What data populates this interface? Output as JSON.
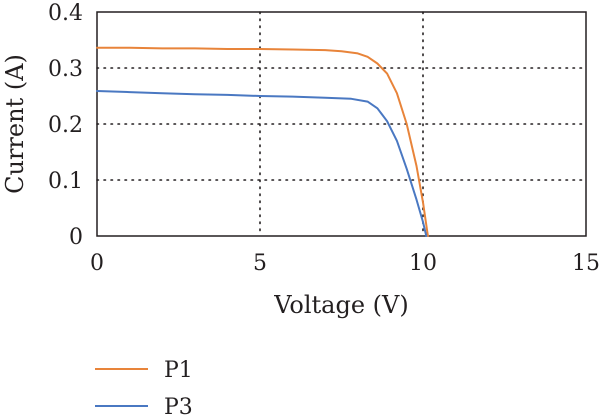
{
  "chart_data": {
    "type": "line",
    "xlabel": "Voltage (V)",
    "ylabel": "Current (A)",
    "xlim": [
      0,
      15
    ],
    "ylim": [
      0,
      0.4
    ],
    "x_ticks": [
      "0",
      "5",
      "10",
      "15"
    ],
    "y_ticks": [
      "0",
      "0.1",
      "0.2",
      "0.3",
      "0.4"
    ],
    "grid": "dotted",
    "legend_position": "bottom-left",
    "series": [
      {
        "name": "P1",
        "color": "#e8843a",
        "x": [
          0,
          1,
          2,
          3,
          4,
          5,
          6,
          7,
          7.5,
          8,
          8.3,
          8.6,
          8.9,
          9.2,
          9.5,
          9.8,
          10.0,
          10.15
        ],
        "y": [
          0.336,
          0.336,
          0.335,
          0.335,
          0.334,
          0.334,
          0.333,
          0.332,
          0.33,
          0.326,
          0.32,
          0.308,
          0.29,
          0.255,
          0.2,
          0.125,
          0.06,
          0.0
        ]
      },
      {
        "name": "P3",
        "color": "#4a78c2",
        "x": [
          0,
          1,
          2,
          3,
          4,
          5,
          6,
          7,
          7.8,
          8.3,
          8.6,
          8.9,
          9.2,
          9.5,
          9.8,
          10.0,
          10.1
        ],
        "y": [
          0.259,
          0.257,
          0.255,
          0.253,
          0.252,
          0.25,
          0.249,
          0.247,
          0.245,
          0.24,
          0.228,
          0.205,
          0.17,
          0.12,
          0.065,
          0.025,
          0.0
        ]
      }
    ]
  }
}
